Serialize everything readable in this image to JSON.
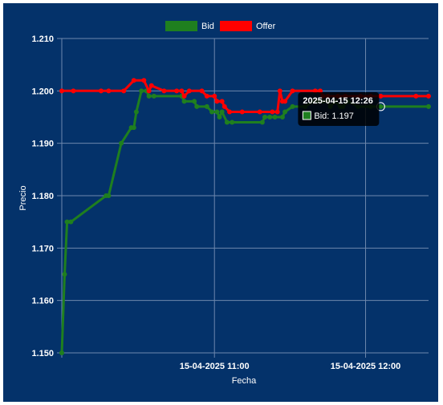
{
  "chart_data": {
    "type": "line",
    "xlabel": "Fecha",
    "ylabel": "Precio",
    "ylim": [
      1.15,
      1.21
    ],
    "yticks": [
      "1.150",
      "1.160",
      "1.170",
      "1.180",
      "1.190",
      "1.200",
      "1.210"
    ],
    "xticks": [
      {
        "t": 60,
        "label": "15-04-2025 11:00"
      },
      {
        "t": 120,
        "label": "15-04-2025 12:00"
      }
    ],
    "x_unit": "minutes after 10:00 on 2025-04-15",
    "grid": true,
    "legend": "top-center",
    "series": [
      {
        "name": "Bid",
        "color": "#1f7f1f",
        "points": [
          [
            -0.6,
            1.15
          ],
          [
            0.5,
            1.165
          ],
          [
            1.5,
            1.175
          ],
          [
            3,
            1.175
          ],
          [
            17,
            1.18
          ],
          [
            18,
            1.18
          ],
          [
            23,
            1.19
          ],
          [
            27,
            1.193
          ],
          [
            28,
            1.193
          ],
          [
            29,
            1.196
          ],
          [
            31,
            1.2
          ],
          [
            33,
            1.2
          ],
          [
            34,
            1.199
          ],
          [
            36,
            1.199
          ],
          [
            47,
            1.199
          ],
          [
            48,
            1.198
          ],
          [
            52,
            1.198
          ],
          [
            53,
            1.197
          ],
          [
            57,
            1.197
          ],
          [
            59,
            1.196
          ],
          [
            61,
            1.196
          ],
          [
            62,
            1.195
          ],
          [
            63,
            1.196
          ],
          [
            65,
            1.194
          ],
          [
            67,
            1.194
          ],
          [
            79,
            1.194
          ],
          [
            80,
            1.195
          ],
          [
            82,
            1.195
          ],
          [
            84,
            1.195
          ],
          [
            87,
            1.195
          ],
          [
            88,
            1.196
          ],
          [
            91,
            1.197
          ],
          [
            96,
            1.197
          ],
          [
            99,
            1.198
          ],
          [
            101,
            1.198
          ],
          [
            103,
            1.198
          ],
          [
            105,
            1.198
          ],
          [
            106,
            1.197
          ],
          [
            108,
            1.198
          ],
          [
            110,
            1.197
          ],
          [
            111,
            1.197
          ],
          [
            113,
            1.198
          ],
          [
            117,
            1.197
          ],
          [
            122,
            1.197
          ],
          [
            126,
            1.197
          ],
          [
            145,
            1.197
          ]
        ]
      },
      {
        "name": "Offer",
        "color": "#ff0000",
        "points": [
          [
            -0.6,
            1.2
          ],
          [
            4,
            1.2
          ],
          [
            15,
            1.2
          ],
          [
            18,
            1.2
          ],
          [
            24,
            1.2
          ],
          [
            28,
            1.202
          ],
          [
            32,
            1.202
          ],
          [
            34,
            1.2
          ],
          [
            35,
            1.201
          ],
          [
            40,
            1.2
          ],
          [
            45,
            1.2
          ],
          [
            47,
            1.2
          ],
          [
            48,
            1.199
          ],
          [
            50,
            1.2
          ],
          [
            55,
            1.2
          ],
          [
            57,
            1.199
          ],
          [
            60,
            1.199
          ],
          [
            61,
            1.198
          ],
          [
            63,
            1.198
          ],
          [
            64,
            1.197
          ],
          [
            66,
            1.196
          ],
          [
            71,
            1.196
          ],
          [
            78,
            1.196
          ],
          [
            83,
            1.196
          ],
          [
            85,
            1.196
          ],
          [
            86,
            1.2
          ],
          [
            87,
            1.198
          ],
          [
            88,
            1.198
          ],
          [
            91,
            1.2
          ],
          [
            100,
            1.2
          ],
          [
            102,
            1.2
          ],
          [
            103,
            1.199
          ],
          [
            105,
            1.199
          ],
          [
            109,
            1.199
          ],
          [
            112,
            1.199
          ],
          [
            118,
            1.199
          ],
          [
            122,
            1.199
          ],
          [
            126,
            1.199
          ],
          [
            140,
            1.199
          ],
          [
            145,
            1.199
          ]
        ]
      }
    ],
    "tooltip": {
      "title": "2025-04-15 12:26",
      "label": "Bid: 1.197",
      "t": 126
    }
  },
  "colors": {
    "background": "#04326a",
    "grid": "#6e88ad",
    "text": "#ffffff"
  }
}
